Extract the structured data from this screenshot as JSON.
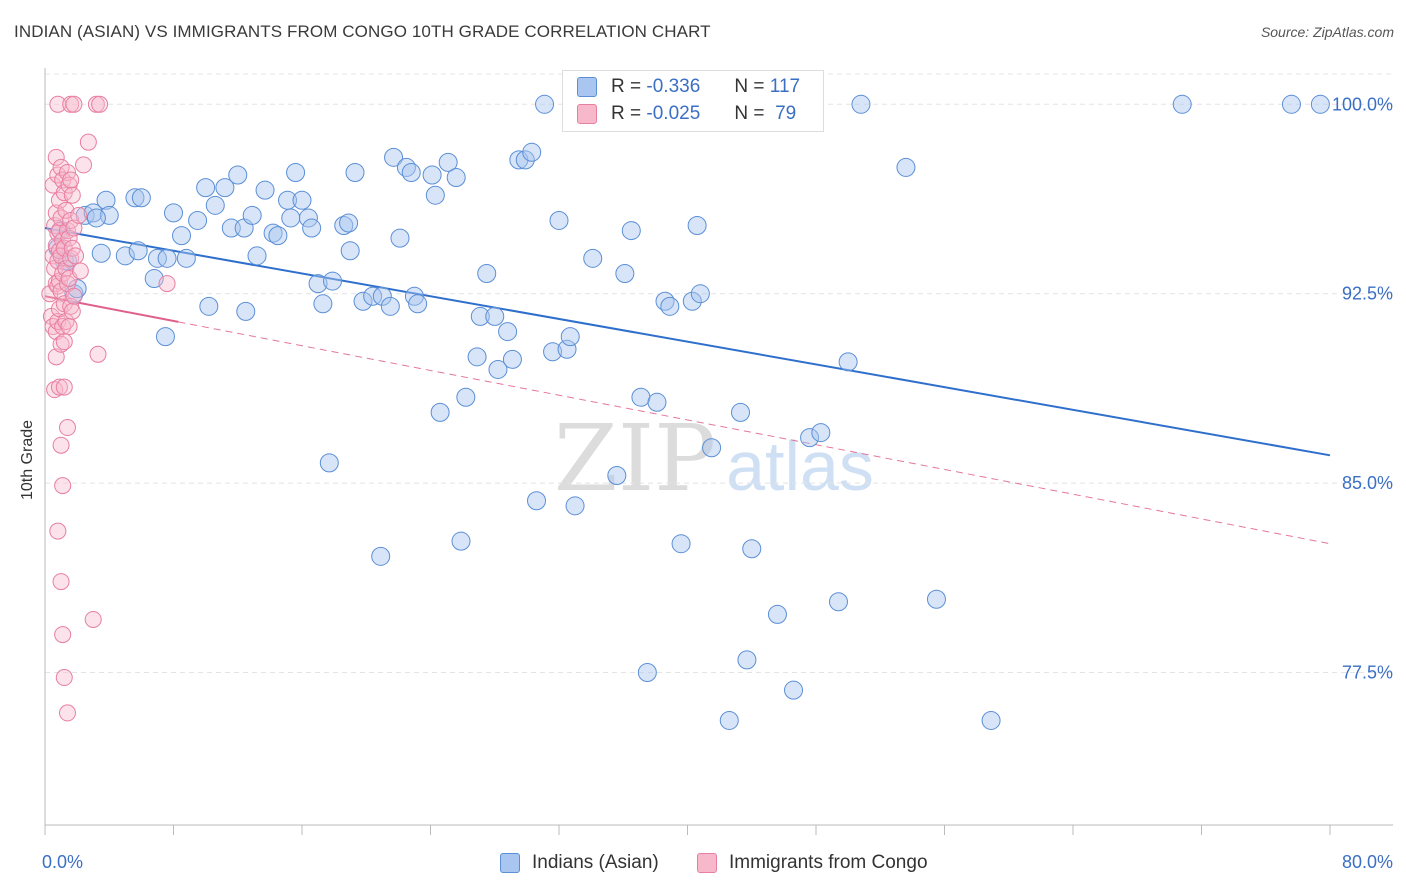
{
  "title": "INDIAN (ASIAN) VS IMMIGRANTS FROM CONGO 10TH GRADE CORRELATION CHART",
  "source": "Source: ZipAtlas.com",
  "watermark": {
    "zip": "ZIP",
    "atlas": "atlas"
  },
  "legend": {
    "r_label": "R =",
    "n_label": "N =",
    "series1": {
      "r": "-0.336",
      "n": "117"
    },
    "series2": {
      "r": "-0.025",
      "n": "79"
    }
  },
  "colors": {
    "blue_fill": "#a8c6ef",
    "blue_stroke": "#5b8fd6",
    "blue_line": "#2f6fcc",
    "pink_fill": "#f7b8cc",
    "pink_stroke": "#e87fa0",
    "pink_line": "#e0608a",
    "tick_text": "#3a6fc4"
  },
  "chart_data": {
    "type": "scatter",
    "ylabel": "10th Grade",
    "xlim": [
      0,
      80
    ],
    "ylim": [
      71.5,
      101.2
    ],
    "x_tick_labels": {
      "left": "0.0%",
      "right": "80.0%"
    },
    "y_ticks": [
      {
        "value": 100.0,
        "label": "100.0%"
      },
      {
        "value": 92.5,
        "label": "92.5%"
      },
      {
        "value": 85.0,
        "label": "85.0%"
      },
      {
        "value": 77.5,
        "label": "77.5%"
      }
    ],
    "grid": true,
    "series": [
      {
        "name": "Indians (Asian)",
        "trend": {
          "x": [
            0,
            80
          ],
          "y": [
            95.1,
            86.1
          ],
          "style": "solid"
        },
        "points": [
          [
            1.0,
            95.0
          ],
          [
            1.2,
            93.8
          ],
          [
            1.8,
            92.5
          ],
          [
            2.5,
            95.6
          ],
          [
            3.0,
            95.7
          ],
          [
            3.8,
            96.2
          ],
          [
            4.0,
            95.6
          ],
          [
            3.5,
            94.1
          ],
          [
            5.0,
            94.0
          ],
          [
            5.6,
            96.3
          ],
          [
            6.0,
            96.3
          ],
          [
            6.8,
            93.1
          ],
          [
            7.0,
            93.9
          ],
          [
            7.5,
            90.8
          ],
          [
            7.6,
            93.9
          ],
          [
            8.0,
            95.7
          ],
          [
            8.5,
            94.8
          ],
          [
            8.8,
            93.9
          ],
          [
            9.5,
            95.4
          ],
          [
            10.0,
            96.7
          ],
          [
            10.2,
            92.0
          ],
          [
            10.6,
            96.0
          ],
          [
            11.2,
            96.7
          ],
          [
            11.6,
            95.1
          ],
          [
            12.0,
            97.2
          ],
          [
            12.4,
            95.1
          ],
          [
            12.5,
            91.8
          ],
          [
            12.9,
            95.6
          ],
          [
            13.2,
            94.0
          ],
          [
            13.7,
            96.6
          ],
          [
            14.2,
            94.9
          ],
          [
            14.5,
            94.8
          ],
          [
            15.1,
            96.2
          ],
          [
            15.3,
            95.5
          ],
          [
            15.6,
            97.3
          ],
          [
            16.0,
            96.2
          ],
          [
            16.4,
            95.5
          ],
          [
            16.6,
            95.1
          ],
          [
            17.0,
            92.9
          ],
          [
            17.3,
            92.1
          ],
          [
            17.7,
            85.8
          ],
          [
            17.9,
            93.0
          ],
          [
            18.6,
            95.2
          ],
          [
            18.9,
            95.3
          ],
          [
            19.0,
            94.2
          ],
          [
            19.3,
            97.3
          ],
          [
            19.8,
            92.2
          ],
          [
            20.4,
            92.4
          ],
          [
            20.9,
            82.1
          ],
          [
            21.0,
            92.4
          ],
          [
            21.5,
            92.0
          ],
          [
            21.7,
            97.9
          ],
          [
            22.1,
            94.7
          ],
          [
            22.5,
            97.5
          ],
          [
            22.8,
            97.3
          ],
          [
            23.0,
            92.4
          ],
          [
            23.2,
            92.1
          ],
          [
            24.1,
            97.2
          ],
          [
            24.3,
            96.4
          ],
          [
            24.6,
            87.8
          ],
          [
            25.1,
            97.7
          ],
          [
            25.6,
            97.1
          ],
          [
            25.9,
            82.7
          ],
          [
            26.2,
            88.4
          ],
          [
            26.9,
            90.0
          ],
          [
            27.1,
            91.6
          ],
          [
            27.5,
            93.3
          ],
          [
            28.0,
            91.6
          ],
          [
            28.2,
            89.5
          ],
          [
            28.8,
            91.0
          ],
          [
            29.1,
            89.9
          ],
          [
            29.5,
            97.8
          ],
          [
            29.9,
            97.8
          ],
          [
            30.3,
            98.1
          ],
          [
            30.6,
            84.3
          ],
          [
            31.1,
            100.0
          ],
          [
            31.6,
            90.2
          ],
          [
            32.0,
            95.4
          ],
          [
            32.5,
            90.3
          ],
          [
            32.7,
            90.8
          ],
          [
            33.0,
            84.1
          ],
          [
            34.1,
            93.9
          ],
          [
            35.6,
            85.3
          ],
          [
            36.1,
            93.3
          ],
          [
            36.5,
            95.0
          ],
          [
            37.1,
            88.4
          ],
          [
            37.5,
            77.5
          ],
          [
            38.1,
            88.2
          ],
          [
            38.6,
            92.2
          ],
          [
            38.9,
            92.0
          ],
          [
            39.6,
            82.6
          ],
          [
            40.3,
            92.2
          ],
          [
            40.6,
            95.2
          ],
          [
            40.8,
            92.5
          ],
          [
            41.5,
            86.4
          ],
          [
            42.6,
            75.6
          ],
          [
            43.3,
            87.8
          ],
          [
            43.7,
            78.0
          ],
          [
            44.0,
            82.4
          ],
          [
            45.6,
            79.8
          ],
          [
            46.6,
            76.8
          ],
          [
            47.6,
            86.8
          ],
          [
            48.3,
            87.0
          ],
          [
            49.4,
            80.3
          ],
          [
            50.0,
            89.8
          ],
          [
            50.8,
            100.0
          ],
          [
            53.6,
            97.5
          ],
          [
            55.5,
            80.4
          ],
          [
            58.9,
            75.6
          ],
          [
            70.8,
            100.0
          ],
          [
            77.6,
            100.0
          ],
          [
            79.4,
            100.0
          ],
          [
            1.4,
            93.8
          ],
          [
            0.8,
            94.3
          ],
          [
            2.0,
            92.7
          ],
          [
            3.2,
            95.5
          ],
          [
            5.8,
            94.2
          ]
        ]
      },
      {
        "name": "Immigrants from Congo",
        "trend": {
          "x": [
            0,
            80
          ],
          "y": [
            92.4,
            82.6
          ],
          "solid_until": 8.3,
          "style": "dashed"
        },
        "points": [
          [
            0.3,
            92.5
          ],
          [
            0.4,
            91.6
          ],
          [
            0.5,
            96.8
          ],
          [
            0.5,
            94.0
          ],
          [
            0.5,
            91.2
          ],
          [
            0.6,
            95.2
          ],
          [
            0.6,
            93.5
          ],
          [
            0.6,
            88.7
          ],
          [
            0.7,
            97.9
          ],
          [
            0.7,
            95.7
          ],
          [
            0.7,
            94.4
          ],
          [
            0.7,
            92.9
          ],
          [
            0.7,
            91.0
          ],
          [
            0.7,
            90.0
          ],
          [
            0.8,
            100.0
          ],
          [
            0.8,
            97.2
          ],
          [
            0.8,
            94.9
          ],
          [
            0.8,
            93.8
          ],
          [
            0.8,
            92.8
          ],
          [
            0.8,
            91.4
          ],
          [
            0.8,
            83.1
          ],
          [
            0.9,
            96.2
          ],
          [
            0.9,
            95.0
          ],
          [
            0.9,
            94.2
          ],
          [
            0.9,
            93.0
          ],
          [
            0.9,
            91.9
          ],
          [
            0.9,
            88.8
          ],
          [
            1.0,
            97.5
          ],
          [
            1.0,
            95.5
          ],
          [
            1.0,
            94.0
          ],
          [
            1.0,
            92.6
          ],
          [
            1.0,
            90.5
          ],
          [
            1.0,
            86.5
          ],
          [
            1.0,
            81.1
          ],
          [
            1.1,
            97.0
          ],
          [
            1.1,
            94.6
          ],
          [
            1.1,
            93.3
          ],
          [
            1.1,
            91.2
          ],
          [
            1.1,
            84.9
          ],
          [
            1.1,
            79.0
          ],
          [
            1.2,
            96.5
          ],
          [
            1.2,
            94.3
          ],
          [
            1.2,
            92.1
          ],
          [
            1.2,
            90.6
          ],
          [
            1.2,
            88.8
          ],
          [
            1.2,
            77.3
          ],
          [
            1.3,
            95.8
          ],
          [
            1.3,
            93.5
          ],
          [
            1.3,
            91.4
          ],
          [
            1.4,
            97.3
          ],
          [
            1.4,
            95.0
          ],
          [
            1.4,
            92.9
          ],
          [
            1.4,
            87.2
          ],
          [
            1.4,
            75.9
          ],
          [
            1.5,
            96.8
          ],
          [
            1.5,
            94.7
          ],
          [
            1.5,
            93.1
          ],
          [
            1.5,
            91.2
          ],
          [
            1.6,
            100.0
          ],
          [
            1.6,
            97.0
          ],
          [
            1.6,
            95.4
          ],
          [
            1.6,
            93.9
          ],
          [
            1.6,
            92.0
          ],
          [
            1.7,
            96.4
          ],
          [
            1.7,
            94.3
          ],
          [
            1.7,
            91.8
          ],
          [
            1.8,
            100.0
          ],
          [
            1.8,
            95.1
          ],
          [
            1.8,
            92.4
          ],
          [
            1.9,
            94.0
          ],
          [
            2.1,
            95.6
          ],
          [
            2.2,
            93.4
          ],
          [
            2.7,
            98.5
          ],
          [
            3.0,
            79.6
          ],
          [
            3.2,
            100.0
          ],
          [
            3.3,
            90.1
          ],
          [
            3.4,
            100.0
          ],
          [
            7.6,
            92.9
          ],
          [
            2.4,
            97.6
          ]
        ]
      }
    ]
  }
}
